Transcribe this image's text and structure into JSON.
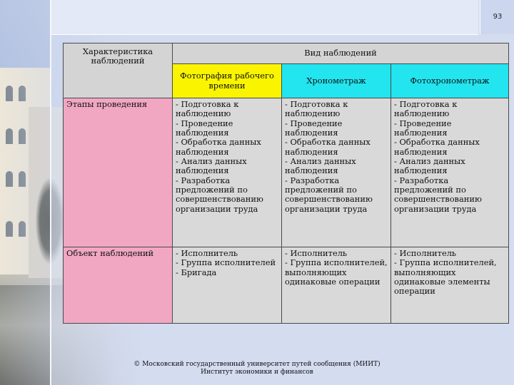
{
  "page_number": "93",
  "table": {
    "corner_header": "Характеристика наблюдений",
    "group_header": "Вид наблюдений",
    "columns": [
      "Фотография рабочего времени",
      "Хронометраж",
      "Фотохронометраж"
    ],
    "rows": [
      {
        "label": "Этапы проведения",
        "cells": [
          "- Подготовка к наблюдению\n- Проведение наблюдения\n- Обработка данных наблюдения\n- Анализ данных наблюдения\n- Разработка предложений по совершенствованию организации труда",
          "- Подготовка к наблюдению\n- Проведение наблюдения\n- Обработка данных наблюдения\n- Анализ данных наблюдения\n- Разработка предложений по совершенствованию организации труда",
          "- Подготовка к наблюдению\n- Проведение наблюдения\n- Обработка данных наблюдения\n- Анализ данных наблюдения\n- Разработка предложений по совершенствованию организации труда"
        ]
      },
      {
        "label": "Объект наблюдений",
        "cells": [
          "- Исполнитель\n- Группа исполнителей\n- Бригада",
          "- Исполнитель\n- Группа исполнителей, выполняющих одинаковые операции",
          "- Исполнитель\n- Группа исполнителей, выполняющих одинаковые элементы операции"
        ]
      }
    ]
  },
  "footer": {
    "line1": "© Московский государственный университет путей сообщения (МИИТ)",
    "line2": "Институт экономики и финансов"
  }
}
